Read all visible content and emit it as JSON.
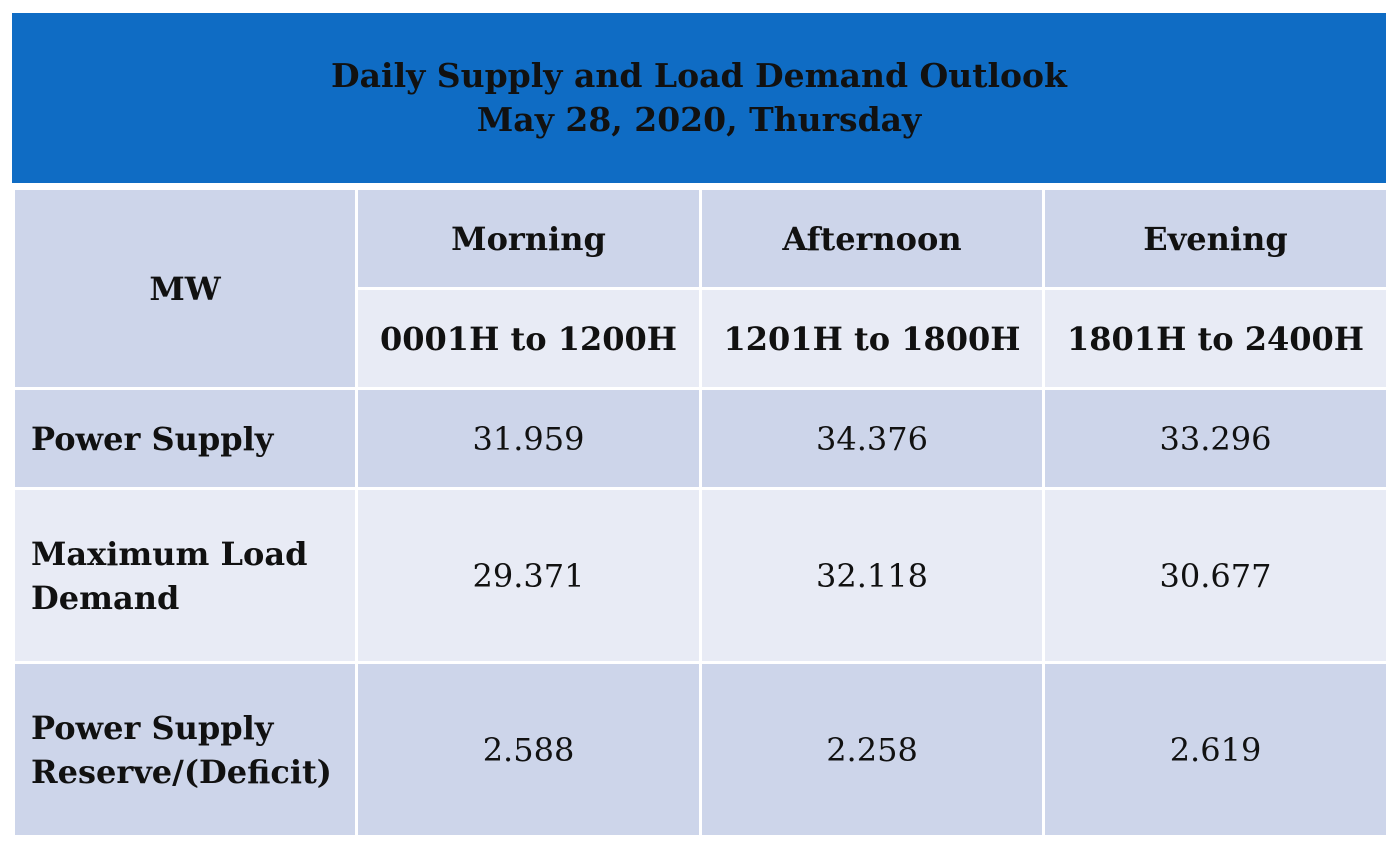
{
  "title": {
    "line1": "Daily Supply and Load Demand Outlook",
    "line2": "May 28, 2020, Thursday"
  },
  "header": {
    "unit": "MW",
    "periods": [
      {
        "name": "Morning",
        "range": "0001H to 1200H"
      },
      {
        "name": "Afternoon",
        "range": "1201H to 1800H"
      },
      {
        "name": "Evening",
        "range": "1801H to 2400H"
      }
    ]
  },
  "rows": [
    {
      "label_lines": [
        "Power Supply"
      ],
      "values": [
        "31.959",
        "34.376",
        "33.296"
      ]
    },
    {
      "label_lines": [
        "Maximum Load",
        "Demand"
      ],
      "values": [
        "29.371",
        "32.118",
        "30.677"
      ]
    },
    {
      "label_lines": [
        "Power Supply",
        "Reserve/(Deficit)"
      ],
      "values": [
        "2.588",
        "2.258",
        "2.619"
      ]
    }
  ],
  "colors": {
    "banner": "#0f6cc4",
    "row_dark": "#cdd5ea",
    "row_light": "#e8ebf5",
    "text": "#111111"
  }
}
